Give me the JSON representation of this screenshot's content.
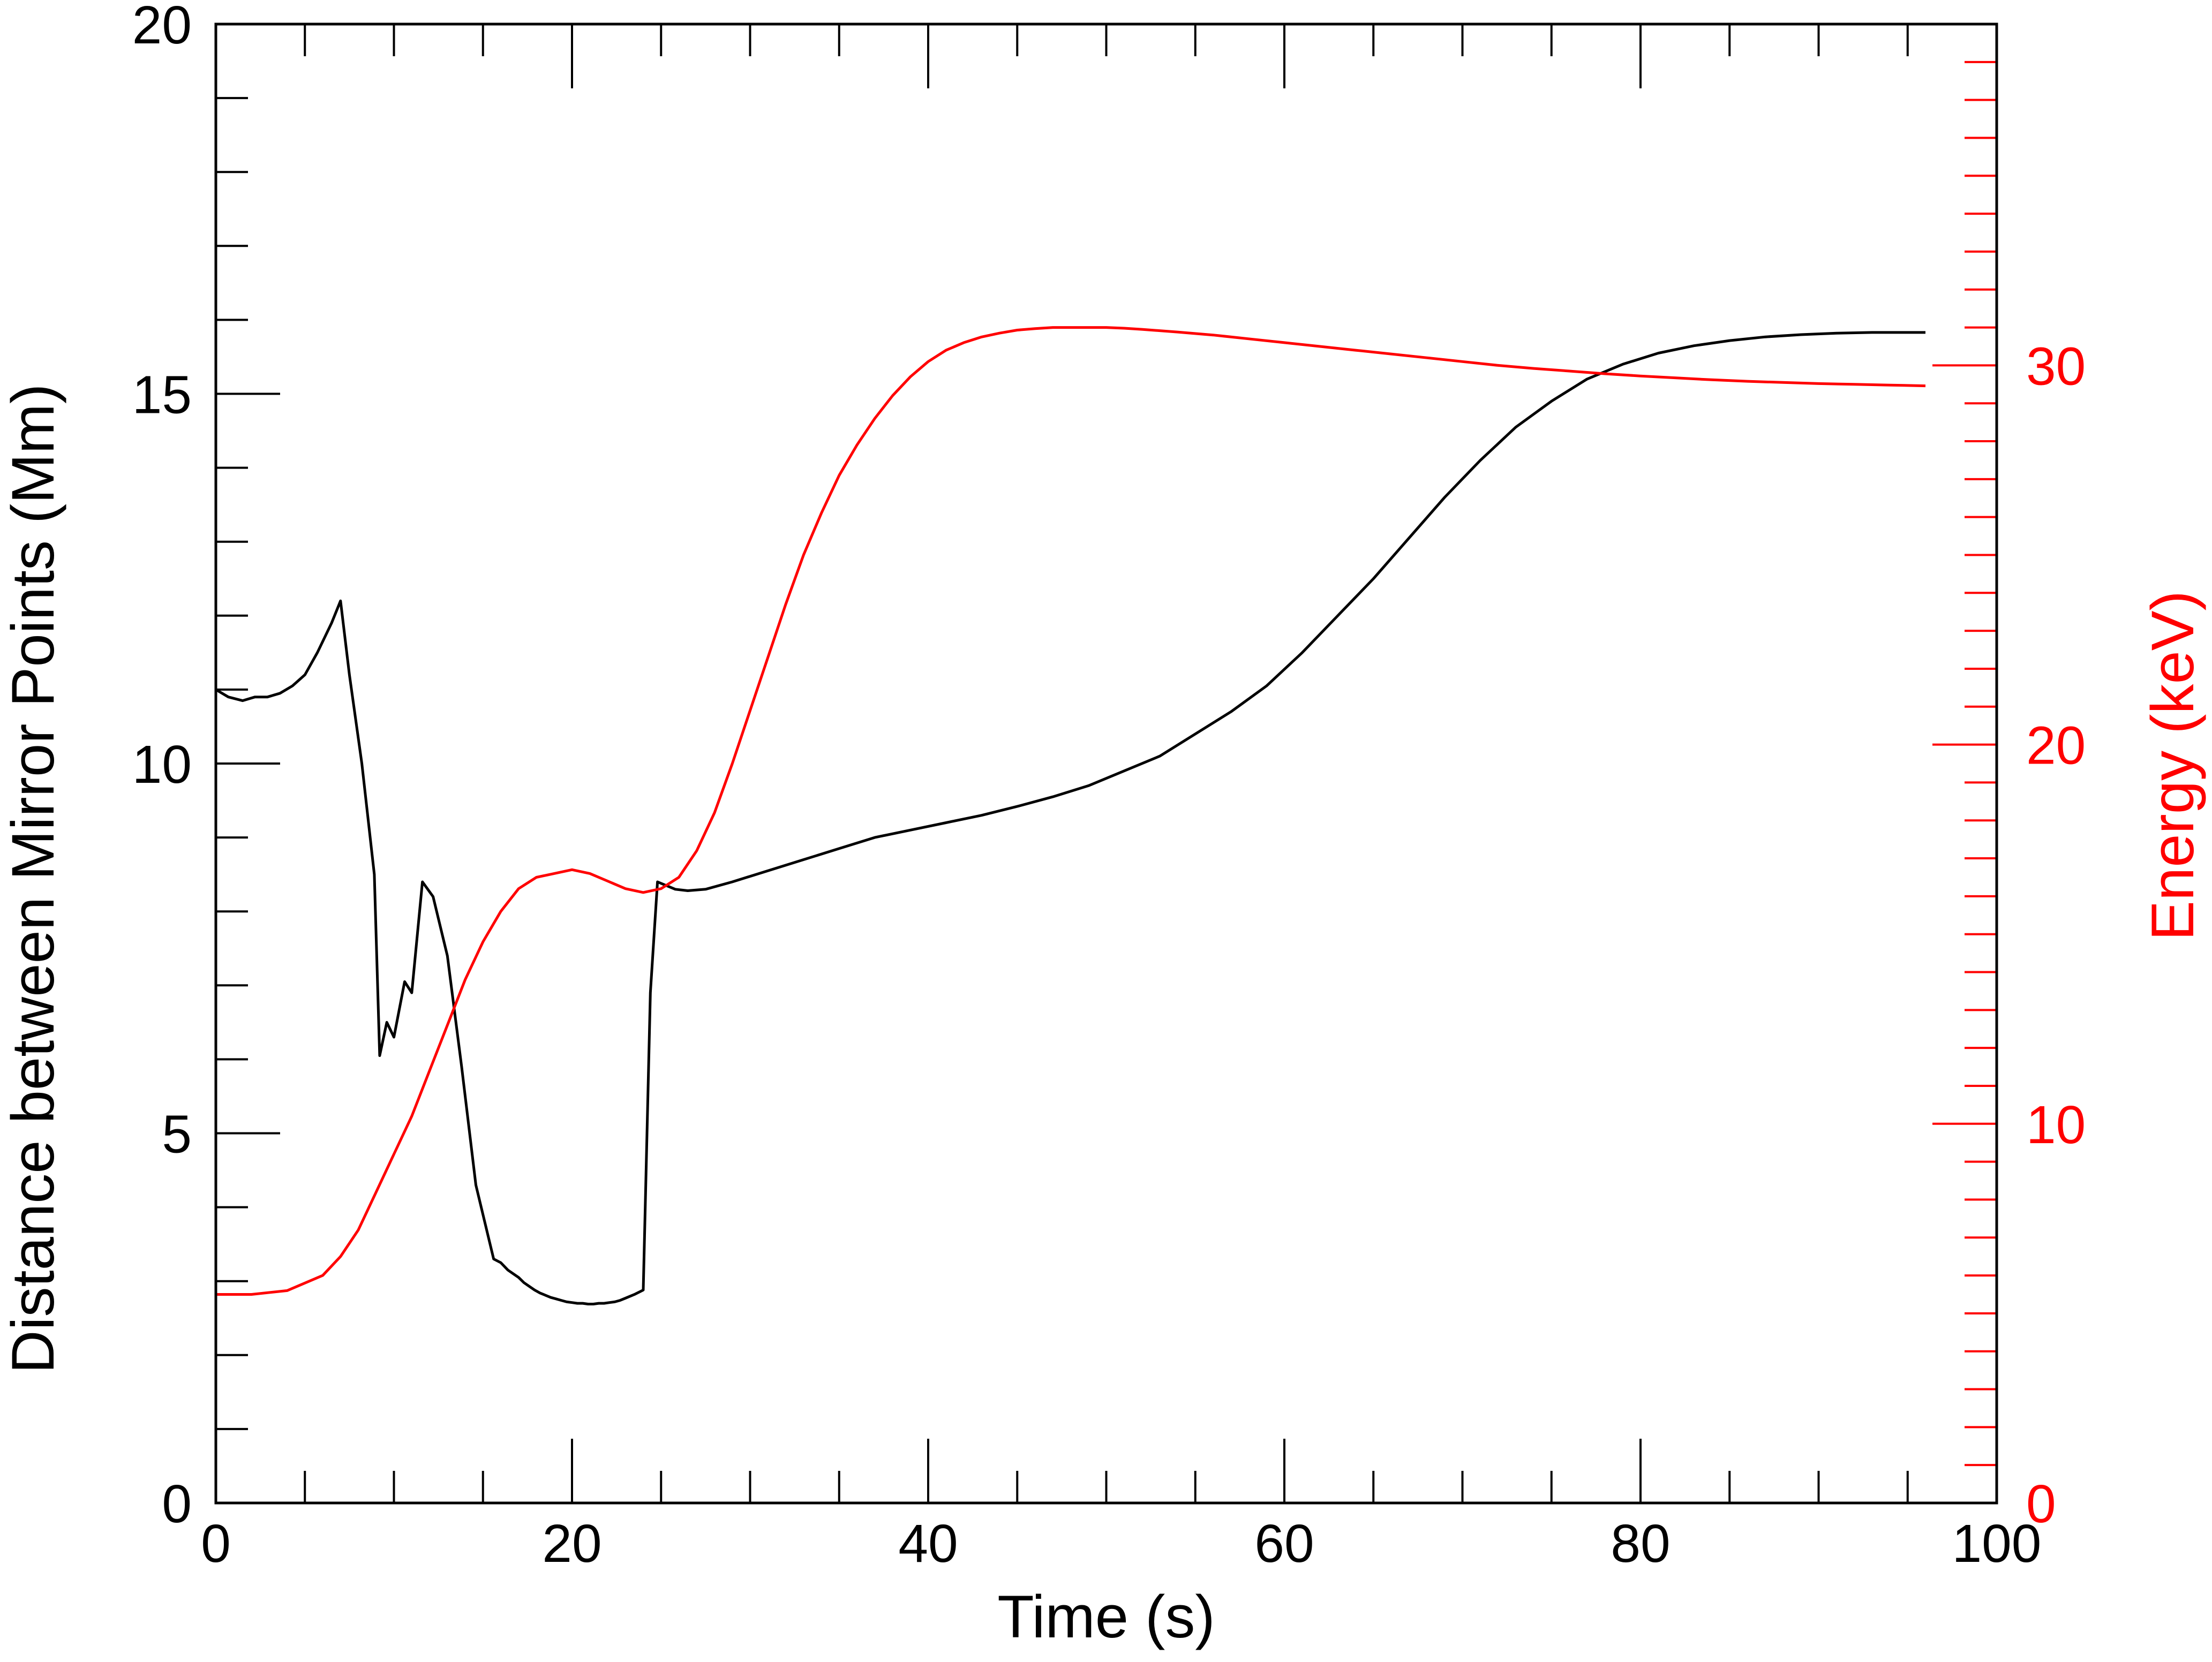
{
  "chart_data": {
    "type": "line",
    "xlabel": "Time (s)",
    "ylabel": "Distance between Mirror Points (Mm)",
    "y2label": "Energy (keV)",
    "xlim": [
      0,
      100
    ],
    "ylim": [
      0,
      20
    ],
    "y2lim": [
      0,
      39
    ],
    "xticks": [
      0,
      20,
      40,
      60,
      80,
      100
    ],
    "yticks": [
      0,
      5,
      10,
      15,
      20
    ],
    "y2ticks": [
      0,
      10,
      20,
      30
    ],
    "xtick_labels": [
      "0",
      "20",
      "40",
      "60",
      "80",
      "100"
    ],
    "ytick_labels": [
      "0",
      "5",
      "10",
      "15",
      "20"
    ],
    "y2tick_labels": [
      "0",
      "10",
      "20",
      "30"
    ],
    "grid": false,
    "colors": {
      "distance": "#000000",
      "energy": "#ff0000"
    },
    "series": [
      {
        "axis": "left",
        "color": "#000000",
        "x": [
          0,
          0.7,
          1.5,
          2.2,
          2.9,
          3.6,
          4.3,
          5,
          5.7,
          6.5,
          7.0,
          7.5,
          8.2,
          8.9,
          9.2,
          9.6,
          10.0,
          10.6,
          11.0,
          11.6,
          12.2,
          13.0,
          13.8,
          14.6,
          15.3,
          15.6,
          16.0,
          16.4,
          16.7,
          17.0,
          17.3,
          17.6,
          17.9,
          18.2,
          18.5,
          18.8,
          19.1,
          19.4,
          19.7,
          20.0,
          20.3,
          20.6,
          20.9,
          21.2,
          21.5,
          21.8,
          22.1,
          22.4,
          22.7,
          23.0,
          23.5,
          24.0,
          24.4,
          24.8,
          25.3,
          25.8,
          26.5,
          27.5,
          29,
          31,
          33,
          35,
          37,
          39,
          41,
          43,
          45,
          47,
          49,
          51,
          53,
          55,
          57,
          59,
          61,
          63,
          65,
          67,
          69,
          71,
          73,
          75,
          77,
          79,
          81,
          83,
          85,
          87,
          89,
          91,
          93,
          95,
          96
        ],
        "y": [
          11.0,
          10.9,
          10.85,
          10.9,
          10.9,
          10.95,
          11.05,
          11.2,
          11.5,
          11.9,
          12.2,
          11.2,
          10.0,
          8.5,
          6.05,
          6.5,
          6.3,
          7.05,
          6.9,
          8.4,
          8.2,
          7.4,
          5.9,
          4.3,
          3.6,
          3.3,
          3.25,
          3.15,
          3.1,
          3.05,
          2.98,
          2.93,
          2.88,
          2.84,
          2.81,
          2.78,
          2.76,
          2.74,
          2.72,
          2.71,
          2.7,
          2.7,
          2.69,
          2.69,
          2.7,
          2.7,
          2.71,
          2.72,
          2.74,
          2.77,
          2.82,
          2.88,
          6.9,
          8.4,
          8.35,
          8.3,
          8.28,
          8.3,
          8.4,
          8.55,
          8.7,
          8.85,
          9.0,
          9.1,
          9.2,
          9.3,
          9.42,
          9.55,
          9.7,
          9.9,
          10.1,
          10.4,
          10.7,
          11.05,
          11.5,
          12.0,
          12.5,
          13.05,
          13.6,
          14.1,
          14.55,
          14.9,
          15.2,
          15.4,
          15.55,
          15.65,
          15.72,
          15.77,
          15.8,
          15.82,
          15.83,
          15.83,
          15.83
        ]
      },
      {
        "axis": "right",
        "color": "#ff0000",
        "x": [
          0,
          2,
          4,
          6,
          7,
          8,
          9,
          10,
          11,
          12,
          13,
          14,
          15,
          16,
          17,
          18,
          19,
          20,
          21,
          22,
          23,
          24,
          25,
          26,
          27,
          28,
          29,
          30,
          31,
          32,
          33,
          34,
          35,
          36,
          37,
          38,
          39,
          40,
          41,
          42,
          43,
          44,
          45,
          46,
          47,
          48,
          49,
          50,
          51,
          52,
          54,
          56,
          58,
          60,
          62,
          64,
          66,
          68,
          70,
          72,
          74,
          76,
          78,
          80,
          82,
          84,
          86,
          88,
          90,
          92,
          94,
          96
        ],
        "y": [
          5.5,
          5.5,
          5.6,
          6.0,
          6.5,
          7.2,
          8.2,
          9.2,
          10.2,
          11.4,
          12.6,
          13.8,
          14.8,
          15.6,
          16.2,
          16.5,
          16.6,
          16.7,
          16.6,
          16.4,
          16.2,
          16.1,
          16.2,
          16.5,
          17.2,
          18.2,
          19.5,
          20.9,
          22.3,
          23.7,
          25.0,
          26.1,
          27.1,
          27.9,
          28.6,
          29.2,
          29.7,
          30.1,
          30.4,
          30.6,
          30.75,
          30.85,
          30.93,
          30.97,
          31.0,
          31.0,
          31.0,
          31.0,
          30.98,
          30.95,
          30.88,
          30.8,
          30.7,
          30.6,
          30.5,
          30.4,
          30.3,
          30.2,
          30.1,
          30.0,
          29.92,
          29.85,
          29.78,
          29.72,
          29.67,
          29.62,
          29.58,
          29.55,
          29.52,
          29.5,
          29.48,
          29.46
        ]
      }
    ]
  }
}
